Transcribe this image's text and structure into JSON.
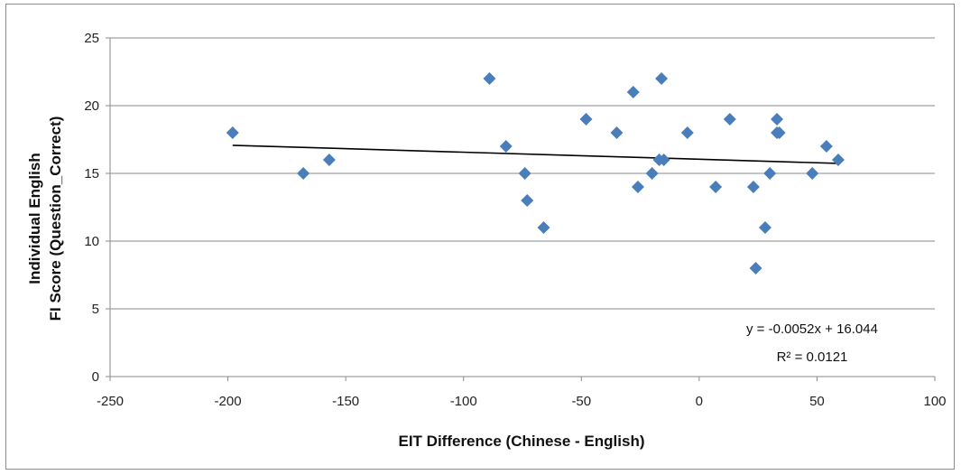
{
  "chart_data": {
    "type": "scatter",
    "title": "",
    "xlabel": "EIT Difference (Chinese - English)",
    "ylabel_lines": [
      "Individual  English",
      "FI Score (Question_Correct)"
    ],
    "xlim": [
      -250,
      100
    ],
    "ylim": [
      0,
      25
    ],
    "x_ticks": [
      -250,
      -200,
      -150,
      -100,
      -50,
      0,
      50,
      100
    ],
    "y_ticks": [
      0,
      5,
      10,
      15,
      20,
      25
    ],
    "grid": "horizontal",
    "legend": "none",
    "marker_color": "#4a7ebb",
    "trendline_color": "#000000",
    "points": [
      {
        "x": -198,
        "y": 18
      },
      {
        "x": -168,
        "y": 15
      },
      {
        "x": -157,
        "y": 16
      },
      {
        "x": -89,
        "y": 22
      },
      {
        "x": -82,
        "y": 17
      },
      {
        "x": -74,
        "y": 15
      },
      {
        "x": -73,
        "y": 13
      },
      {
        "x": -66,
        "y": 11
      },
      {
        "x": -48,
        "y": 19
      },
      {
        "x": -35,
        "y": 18
      },
      {
        "x": -28,
        "y": 21
      },
      {
        "x": -26,
        "y": 14
      },
      {
        "x": -20,
        "y": 15
      },
      {
        "x": -17,
        "y": 16
      },
      {
        "x": -16,
        "y": 22
      },
      {
        "x": -15,
        "y": 16
      },
      {
        "x": -5,
        "y": 18
      },
      {
        "x": 7,
        "y": 14
      },
      {
        "x": 13,
        "y": 19
      },
      {
        "x": 23,
        "y": 14
      },
      {
        "x": 24,
        "y": 8
      },
      {
        "x": 28,
        "y": 11
      },
      {
        "x": 30,
        "y": 15
      },
      {
        "x": 33,
        "y": 19
      },
      {
        "x": 33,
        "y": 18
      },
      {
        "x": 34,
        "y": 18
      },
      {
        "x": 48,
        "y": 15
      },
      {
        "x": 54,
        "y": 17
      },
      {
        "x": 59,
        "y": 16
      }
    ],
    "trendline": {
      "slope": -0.0052,
      "intercept": 16.044,
      "x_range": [
        -198,
        59
      ],
      "equation_label": "y = -0.0052x + 16.044",
      "r2_label": "R² = 0.0121"
    }
  }
}
